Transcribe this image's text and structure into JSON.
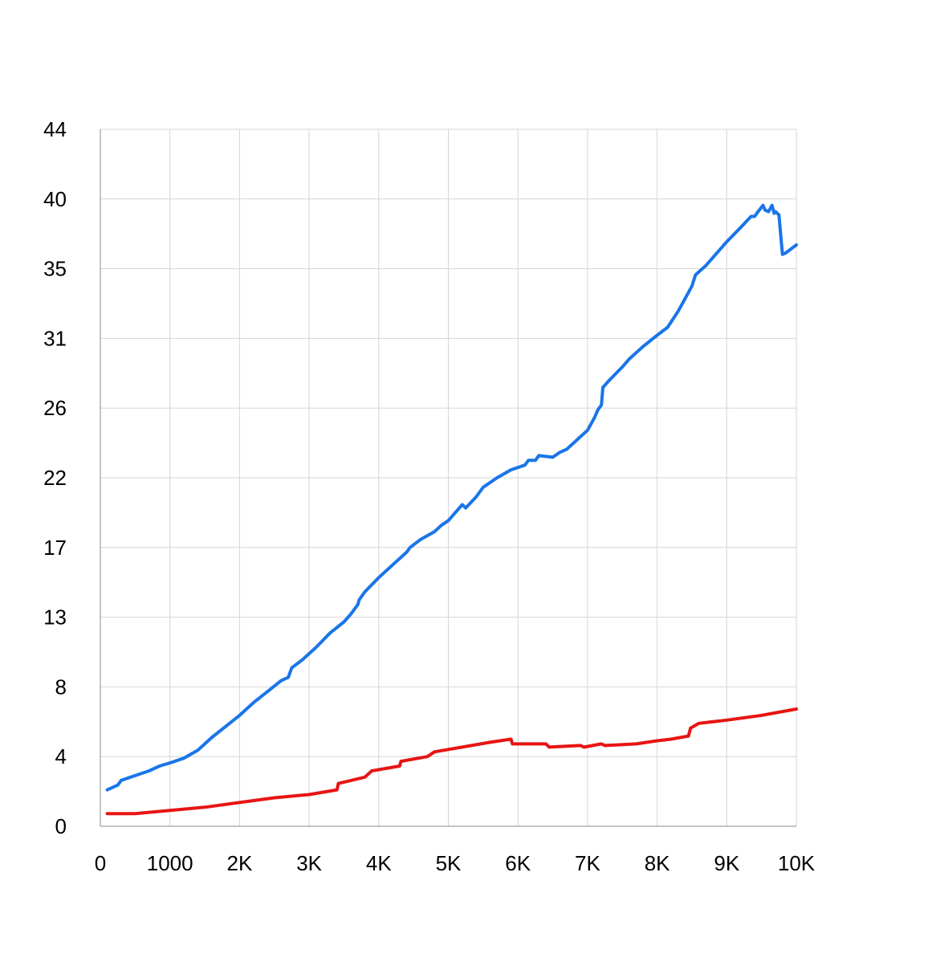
{
  "chart_data": {
    "type": "line",
    "title": "",
    "xlabel": "",
    "ylabel": "",
    "xlim": [
      0,
      10000
    ],
    "ylim": [
      0,
      44
    ],
    "grid": true,
    "legend": "none",
    "x_ticks": [
      {
        "value": 0,
        "label": "0"
      },
      {
        "value": 1000,
        "label": "1000"
      },
      {
        "value": 2000,
        "label": "2K"
      },
      {
        "value": 3000,
        "label": "3K"
      },
      {
        "value": 4000,
        "label": "4K"
      },
      {
        "value": 5000,
        "label": "5K"
      },
      {
        "value": 6000,
        "label": "6K"
      },
      {
        "value": 7000,
        "label": "7K"
      },
      {
        "value": 8000,
        "label": "8K"
      },
      {
        "value": 9000,
        "label": "9K"
      },
      {
        "value": 10000,
        "label": "10K"
      }
    ],
    "y_ticks": [
      "0",
      "4",
      "8",
      "13",
      "17",
      "22",
      "26",
      "31",
      "35",
      "40",
      "44"
    ],
    "series": [
      {
        "color": "#1a75e8",
        "x": [
          100,
          250,
          300,
          500,
          700,
          850,
          1000,
          1200,
          1400,
          1600,
          1800,
          2000,
          2200,
          2400,
          2600,
          2700,
          2750,
          2900,
          3100,
          3300,
          3500,
          3600,
          3700,
          3720,
          3800,
          4000,
          4200,
          4400,
          4450,
          4600,
          4800,
          4900,
          5000,
          5200,
          5250,
          5400,
          5500,
          5700,
          5900,
          6100,
          6150,
          6250,
          6300,
          6500,
          6600,
          6700,
          6800,
          6900,
          7000,
          7100,
          7150,
          7200,
          7220,
          7300,
          7500,
          7600,
          7800,
          8000,
          8150,
          8300,
          8400,
          8500,
          8550,
          8600,
          8700,
          8800,
          9000,
          9200,
          9350,
          9400,
          9450,
          9520,
          9550,
          9600,
          9650,
          9680,
          9700,
          9750,
          9800,
          9850,
          10000
        ],
        "y": [
          2.3,
          2.6,
          2.9,
          3.2,
          3.5,
          3.8,
          4.0,
          4.3,
          4.8,
          5.6,
          6.3,
          7.0,
          7.8,
          8.5,
          9.2,
          9.4,
          10.0,
          10.5,
          11.3,
          12.2,
          12.9,
          13.4,
          14.0,
          14.3,
          14.8,
          15.7,
          16.5,
          17.3,
          17.6,
          18.1,
          18.6,
          19.0,
          19.3,
          20.3,
          20.1,
          20.8,
          21.4,
          22.0,
          22.5,
          22.8,
          23.1,
          23.1,
          23.4,
          23.3,
          23.6,
          23.8,
          24.2,
          24.6,
          25.0,
          25.8,
          26.3,
          26.6,
          27.7,
          28.1,
          29.0,
          29.5,
          30.3,
          31.0,
          31.5,
          32.5,
          33.3,
          34.1,
          34.8,
          35.0,
          35.4,
          35.9,
          36.9,
          37.8,
          38.5,
          38.5,
          38.8,
          39.2,
          38.9,
          38.8,
          39.2,
          38.7,
          38.8,
          38.6,
          36.1,
          36.2,
          36.7
        ]
      },
      {
        "color": "#e81414",
        "x": [
          100,
          500,
          1000,
          1500,
          2000,
          2500,
          3000,
          3400,
          3420,
          3800,
          3900,
          4300,
          4320,
          4700,
          4800,
          5200,
          5600,
          5900,
          5920,
          6400,
          6450,
          6900,
          6950,
          7200,
          7250,
          7700,
          8000,
          8200,
          8450,
          8480,
          8600,
          9000,
          9500,
          10000
        ],
        "y": [
          0.8,
          0.8,
          1.0,
          1.2,
          1.5,
          1.8,
          2.0,
          2.3,
          2.7,
          3.1,
          3.5,
          3.8,
          4.1,
          4.4,
          4.7,
          5.0,
          5.3,
          5.5,
          5.2,
          5.2,
          5.0,
          5.1,
          5.0,
          5.2,
          5.1,
          5.2,
          5.4,
          5.5,
          5.7,
          6.2,
          6.5,
          6.7,
          7.0,
          7.4
        ]
      }
    ]
  }
}
